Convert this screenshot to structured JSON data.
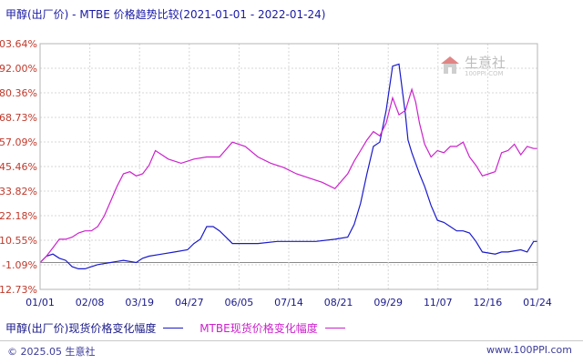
{
  "title": "甲醇(出厂价) - MTBE 价格趋势比较(2021-01-01 - 2022-01-24)",
  "watermark": {
    "brand": "生意社",
    "url": "100PPI.COM"
  },
  "legend": [
    {
      "name": "甲醇(出厂价)现货价格变化幅度",
      "color": "#1a1acc"
    },
    {
      "name": "MTBE现货价格变化幅度",
      "color": "#cc22cc"
    }
  ],
  "footer": {
    "left": "© 2025.05 生意社",
    "right": "www.100PPI.com"
  },
  "colors": {
    "axis_text": "#c0392b",
    "x_text": "#1a1a8a",
    "grid": "#d7d7d7",
    "zero": "#8a8a8a"
  },
  "chart_data": {
    "type": "line",
    "x_ticks": [
      "01/01",
      "02/08",
      "03/19",
      "04/27",
      "06/05",
      "07/14",
      "08/21",
      "09/29",
      "11/07",
      "12/16",
      "01/24"
    ],
    "y_ticks": [
      "103.64%",
      "92.00%",
      "80.36%",
      "68.73%",
      "57.09%",
      "45.46%",
      "33.82%",
      "22.18%",
      "10.55%",
      "-1.09%",
      "-12.73%"
    ],
    "ylim": [
      -12.73,
      103.64
    ],
    "xlim": [
      0,
      388
    ],
    "series": [
      {
        "name": "甲醇(出厂价)现货价格变化幅度",
        "x": [
          0,
          5,
          10,
          15,
          20,
          25,
          30,
          35,
          40,
          45,
          55,
          65,
          75,
          80,
          85,
          95,
          105,
          115,
          120,
          125,
          130,
          135,
          140,
          145,
          150,
          160,
          170,
          185,
          200,
          215,
          230,
          240,
          245,
          250,
          255,
          260,
          265,
          270,
          275,
          280,
          285,
          287,
          290,
          293,
          296,
          300,
          305,
          310,
          315,
          320,
          325,
          330,
          335,
          340,
          345,
          355,
          360,
          365,
          375,
          380,
          385,
          388
        ],
        "y": [
          0,
          3,
          4,
          2,
          1,
          -2,
          -3,
          -3,
          -2,
          -1,
          0,
          1,
          0,
          2,
          3,
          4,
          5,
          6,
          9,
          11,
          17,
          17,
          15,
          12,
          9,
          9,
          9,
          10,
          10,
          10,
          11,
          12,
          18,
          28,
          42,
          55,
          57,
          72,
          93,
          94,
          70,
          58,
          52,
          47,
          42,
          36,
          27,
          20,
          19,
          17,
          15,
          15,
          14,
          10,
          5,
          4,
          5,
          5,
          6,
          5,
          10,
          10
        ]
      },
      {
        "name": "MTBE现货价格变化幅度",
        "x": [
          0,
          5,
          10,
          15,
          20,
          25,
          30,
          35,
          40,
          45,
          50,
          55,
          60,
          65,
          70,
          75,
          80,
          85,
          90,
          95,
          100,
          110,
          120,
          130,
          140,
          150,
          160,
          170,
          180,
          190,
          200,
          210,
          220,
          230,
          240,
          245,
          250,
          255,
          260,
          265,
          270,
          275,
          280,
          285,
          290,
          293,
          296,
          300,
          305,
          310,
          315,
          320,
          325,
          330,
          335,
          340,
          345,
          350,
          355,
          360,
          365,
          370,
          375,
          380,
          385,
          388
        ],
        "y": [
          0,
          3,
          7,
          11,
          11,
          12,
          14,
          15,
          15,
          17,
          22,
          29,
          36,
          42,
          43,
          41,
          42,
          46,
          53,
          51,
          49,
          47,
          49,
          50,
          50,
          57,
          55,
          50,
          47,
          45,
          42,
          40,
          38,
          35,
          42,
          48,
          53,
          58,
          62,
          60,
          66,
          78,
          70,
          72,
          82,
          76,
          66,
          56,
          50,
          53,
          52,
          55,
          55,
          57,
          50,
          46,
          41,
          42,
          43,
          52,
          53,
          56,
          51,
          55,
          54,
          54
        ]
      }
    ]
  }
}
